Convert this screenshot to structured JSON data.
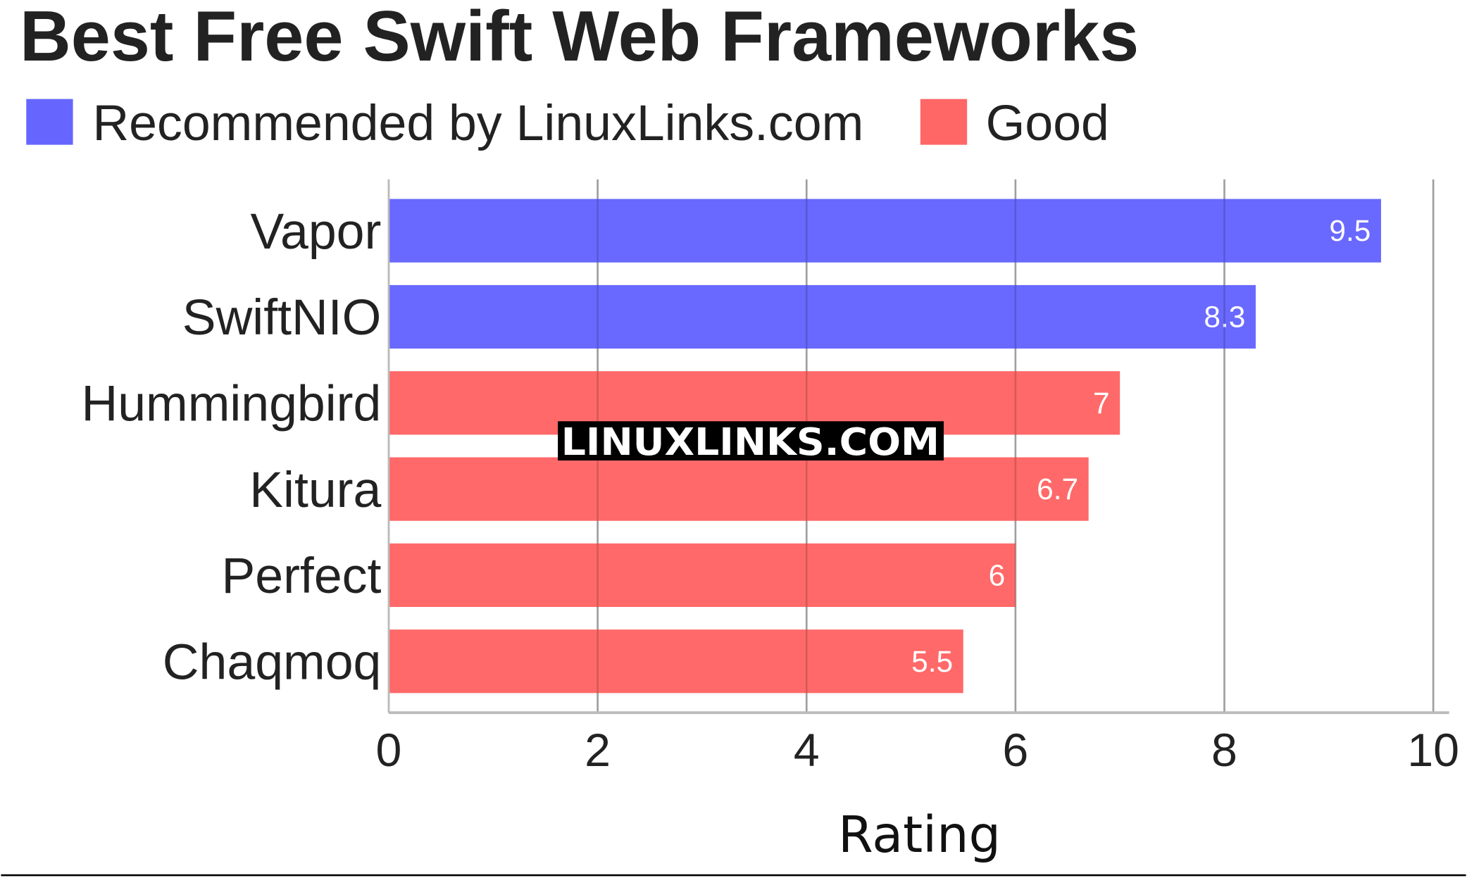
{
  "chart_data": {
    "type": "bar",
    "orientation": "horizontal",
    "title": "Best Free Swift Web Frameworks",
    "xlabel": "Rating",
    "ylabel": "",
    "xlim": [
      0,
      10
    ],
    "xticks": [
      "0",
      "2",
      "4",
      "6",
      "8",
      "10"
    ],
    "grid": true,
    "legend_placement": "top-left",
    "legend": [
      {
        "name": "Recommended by LinuxLinks.com",
        "color": "#6666ff"
      },
      {
        "name": "Good",
        "color": "#ff6666"
      }
    ],
    "categories": [
      "Vapor",
      "SwiftNIO",
      "Hummingbird",
      "Kitura",
      "Perfect",
      "Chaqmoq"
    ],
    "values": [
      9.5,
      8.3,
      7,
      6.7,
      6,
      5.5
    ],
    "value_labels": [
      "9.5",
      "8.3",
      "7",
      "6.7",
      "6",
      "5.5"
    ],
    "groups": [
      "Recommended by LinuxLinks.com",
      "Recommended by LinuxLinks.com",
      "Good",
      "Good",
      "Good",
      "Good"
    ]
  },
  "watermark": "LINUXLINKS.COM"
}
